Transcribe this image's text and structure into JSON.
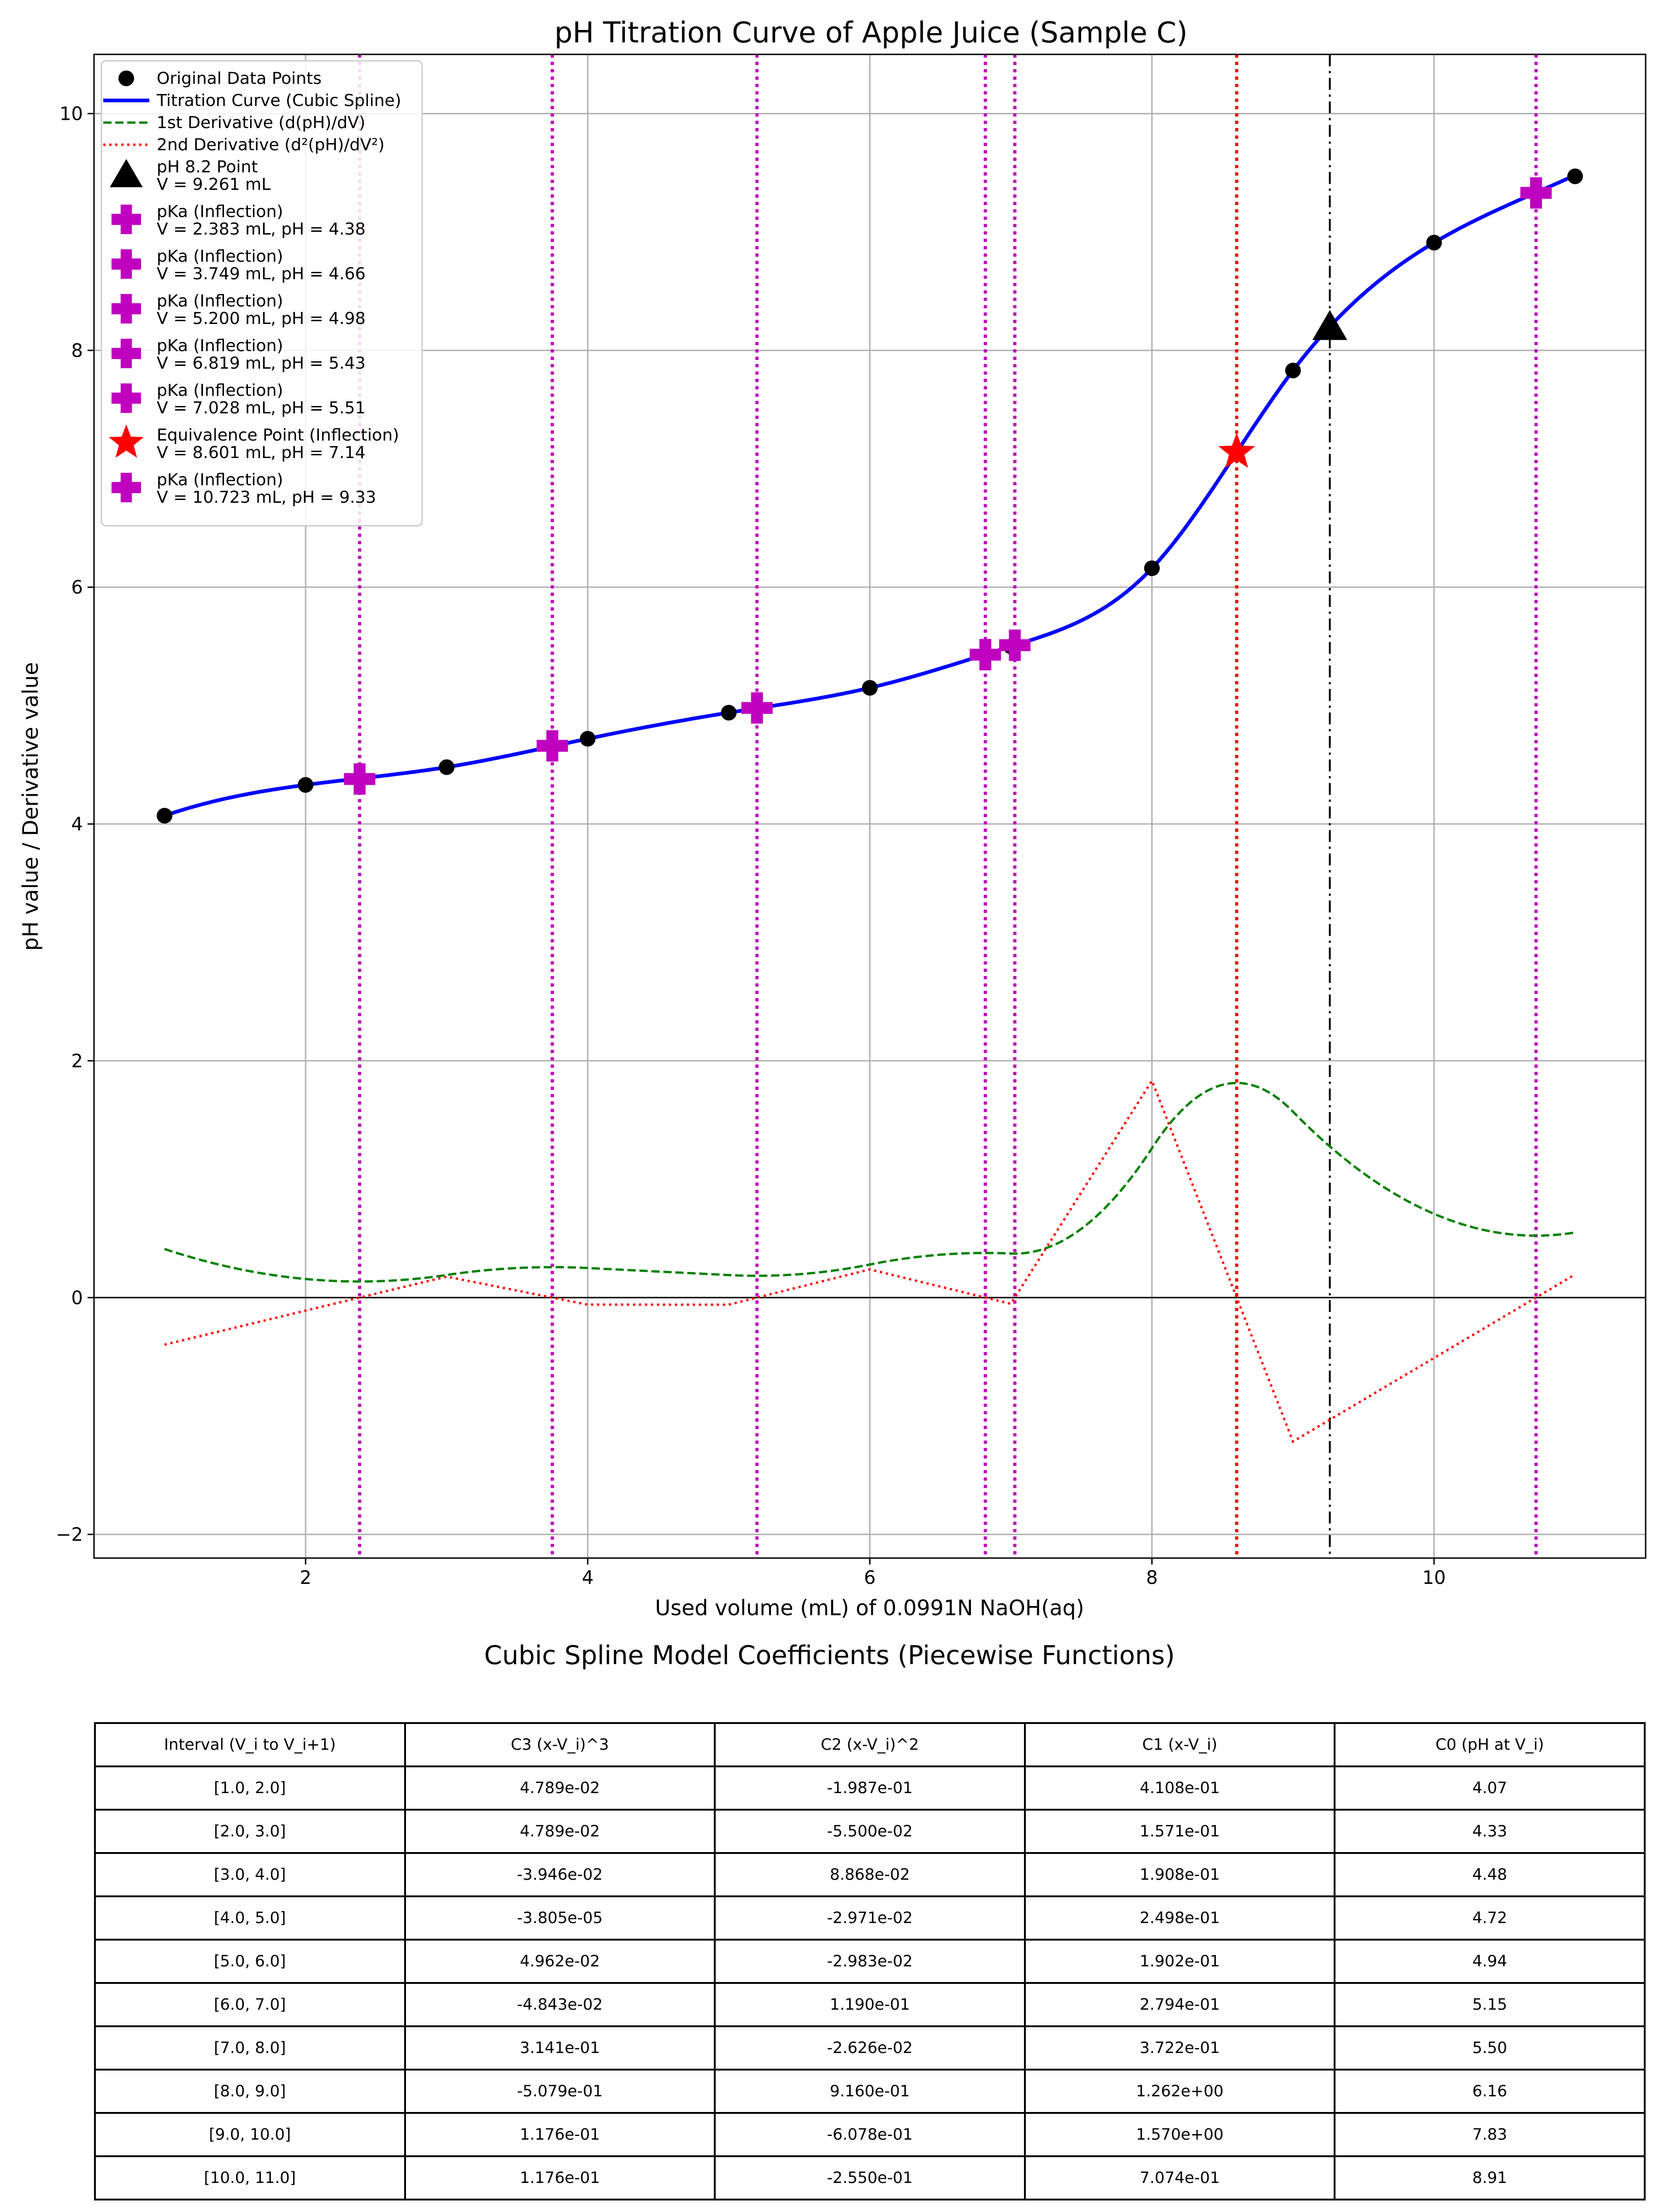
{
  "chart_data": {
    "type": "line",
    "title": "pH Titration Curve of Apple Juice (Sample C)",
    "xlabel": "Used volume (mL) of 0.0991N NaOH(aq)",
    "ylabel": "pH value / Derivative value",
    "xlim": [
      0.5,
      11.5
    ],
    "ylim": [
      -2.2,
      10.5
    ],
    "xticks": [
      2,
      4,
      6,
      8,
      10
    ],
    "yticks": [
      -2,
      0,
      2,
      4,
      6,
      8,
      10
    ],
    "ytick_labels": [
      "−2",
      "0",
      "2",
      "4",
      "6",
      "8",
      "10"
    ],
    "grid": true,
    "legend_position": "upper-left",
    "original_points": {
      "name": "Original Data Points",
      "x": [
        1,
        2,
        3,
        4,
        5,
        6,
        7,
        8,
        9,
        10,
        11
      ],
      "y": [
        4.07,
        4.33,
        4.48,
        4.72,
        4.94,
        5.15,
        5.5,
        6.16,
        7.83,
        8.91,
        9.47
      ]
    },
    "spline": {
      "name": "Titration Curve (Cubic Spline)",
      "color": "#0000ff",
      "knots": [
        1,
        2,
        3,
        4,
        5,
        6,
        7,
        8,
        9,
        10,
        11
      ],
      "coefficients": [
        [
          0.04789,
          -0.1987,
          0.4108,
          4.07
        ],
        [
          0.04789,
          -0.055,
          0.1571,
          4.33
        ],
        [
          -0.03946,
          0.08868,
          0.1908,
          4.48
        ],
        [
          -3.805e-05,
          -0.02971,
          0.2498,
          4.72
        ],
        [
          0.04962,
          -0.02983,
          0.1902,
          4.94
        ],
        [
          -0.04843,
          0.119,
          0.2794,
          5.15
        ],
        [
          0.3141,
          -0.02626,
          0.3722,
          5.5
        ],
        [
          -0.5079,
          0.916,
          1.262,
          6.16
        ],
        [
          0.1176,
          -0.6078,
          1.57,
          7.83
        ],
        [
          0.1176,
          -0.255,
          0.7074,
          8.91
        ]
      ]
    },
    "first_derivative": {
      "name": "1st Derivative (d(pH)/dV)",
      "color": "#008000"
    },
    "second_derivative": {
      "name": "2nd Derivative (d²(pH)/dV²)",
      "color": "#ff0000"
    },
    "ph82_point": {
      "name": "pH 8.2 Point",
      "detail": "V = 9.261 mL",
      "x": 9.261,
      "y": 8.2
    },
    "pka_points": [
      {
        "name": "pKa (Inflection)",
        "detail": "V = 2.383 mL, pH = 4.38",
        "x": 2.383,
        "y": 4.38
      },
      {
        "name": "pKa (Inflection)",
        "detail": "V = 3.749 mL, pH = 4.66",
        "x": 3.749,
        "y": 4.66
      },
      {
        "name": "pKa (Inflection)",
        "detail": "V = 5.200 mL, pH = 4.98",
        "x": 5.2,
        "y": 4.98
      },
      {
        "name": "pKa (Inflection)",
        "detail": "V = 6.819 mL, pH = 5.43",
        "x": 6.819,
        "y": 5.43
      },
      {
        "name": "pKa (Inflection)",
        "detail": "V = 7.028 mL, pH = 5.51",
        "x": 7.028,
        "y": 5.51
      },
      {
        "name": "pKa (Inflection)",
        "detail": "V = 10.723 mL, pH = 9.33",
        "x": 10.723,
        "y": 9.33
      }
    ],
    "equivalence_point": {
      "name": "Equivalence Point (Inflection)",
      "detail": "V = 8.601 mL, pH = 7.14",
      "x": 8.601,
      "y": 7.14
    }
  },
  "table": {
    "title": "Cubic Spline Model Coefficients (Piecewise Functions)",
    "headers": [
      "Interval (V_i to V_i+1)",
      "C3 (x-V_i)^3",
      "C2 (x-V_i)^2",
      "C1 (x-V_i)",
      "C0 (pH at V_i)"
    ],
    "rows": [
      [
        "[1.0, 2.0]",
        "4.789e-02",
        "-1.987e-01",
        "4.108e-01",
        "4.07"
      ],
      [
        "[2.0, 3.0]",
        "4.789e-02",
        "-5.500e-02",
        "1.571e-01",
        "4.33"
      ],
      [
        "[3.0, 4.0]",
        "-3.946e-02",
        "8.868e-02",
        "1.908e-01",
        "4.48"
      ],
      [
        "[4.0, 5.0]",
        "-3.805e-05",
        "-2.971e-02",
        "2.498e-01",
        "4.72"
      ],
      [
        "[5.0, 6.0]",
        "4.962e-02",
        "-2.983e-02",
        "1.902e-01",
        "4.94"
      ],
      [
        "[6.0, 7.0]",
        "-4.843e-02",
        "1.190e-01",
        "2.794e-01",
        "5.15"
      ],
      [
        "[7.0, 8.0]",
        "3.141e-01",
        "-2.626e-02",
        "3.722e-01",
        "5.50"
      ],
      [
        "[8.0, 9.0]",
        "-5.079e-01",
        "9.160e-01",
        "1.262e+00",
        "6.16"
      ],
      [
        "[9.0, 10.0]",
        "1.176e-01",
        "-6.078e-01",
        "1.570e+00",
        "7.83"
      ],
      [
        "[10.0, 11.0]",
        "1.176e-01",
        "-2.550e-01",
        "7.074e-01",
        "8.91"
      ]
    ]
  }
}
